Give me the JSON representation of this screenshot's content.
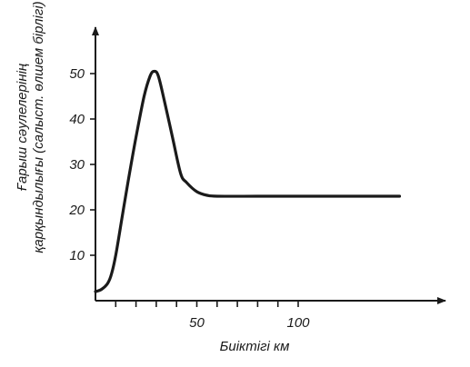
{
  "chart_data": {
    "type": "line",
    "title": "",
    "xlabel": "Биіктігі  км",
    "ylabel_lines": [
      "Ғарыш сәулелерінің",
      "қарқындылығы (салыст. өлшем бірлігі)"
    ],
    "xlim": [
      0,
      165
    ],
    "ylim": [
      0,
      60
    ],
    "x_ticks": [
      {
        "value": 10,
        "label": ""
      },
      {
        "value": 20,
        "label": ""
      },
      {
        "value": 30,
        "label": ""
      },
      {
        "value": 40,
        "label": ""
      },
      {
        "value": 50,
        "label": "50"
      },
      {
        "value": 60,
        "label": ""
      },
      {
        "value": 70,
        "label": ""
      },
      {
        "value": 80,
        "label": ""
      },
      {
        "value": 90,
        "label": ""
      },
      {
        "value": 100,
        "label": "100"
      }
    ],
    "y_ticks": [
      {
        "value": 10,
        "label": "10"
      },
      {
        "value": 20,
        "label": "20"
      },
      {
        "value": 30,
        "label": "30"
      },
      {
        "value": 40,
        "label": "40"
      },
      {
        "value": 50,
        "label": "50"
      }
    ],
    "grid": false,
    "legend": "none",
    "line_color": "#1a1a1a",
    "series": [
      {
        "name": "",
        "points": [
          [
            0,
            2
          ],
          [
            3,
            2.5
          ],
          [
            6,
            3.8
          ],
          [
            8,
            6
          ],
          [
            10,
            10
          ],
          [
            13,
            18
          ],
          [
            16,
            26
          ],
          [
            20,
            36
          ],
          [
            24,
            45
          ],
          [
            27,
            49.5
          ],
          [
            29,
            50.5
          ],
          [
            31,
            49.5
          ],
          [
            34,
            44
          ],
          [
            38,
            36
          ],
          [
            42,
            28
          ],
          [
            45,
            26
          ],
          [
            50,
            24
          ],
          [
            55,
            23.2
          ],
          [
            60,
            23
          ],
          [
            80,
            23
          ],
          [
            100,
            23
          ],
          [
            130,
            23
          ],
          [
            150,
            23
          ]
        ]
      }
    ]
  }
}
